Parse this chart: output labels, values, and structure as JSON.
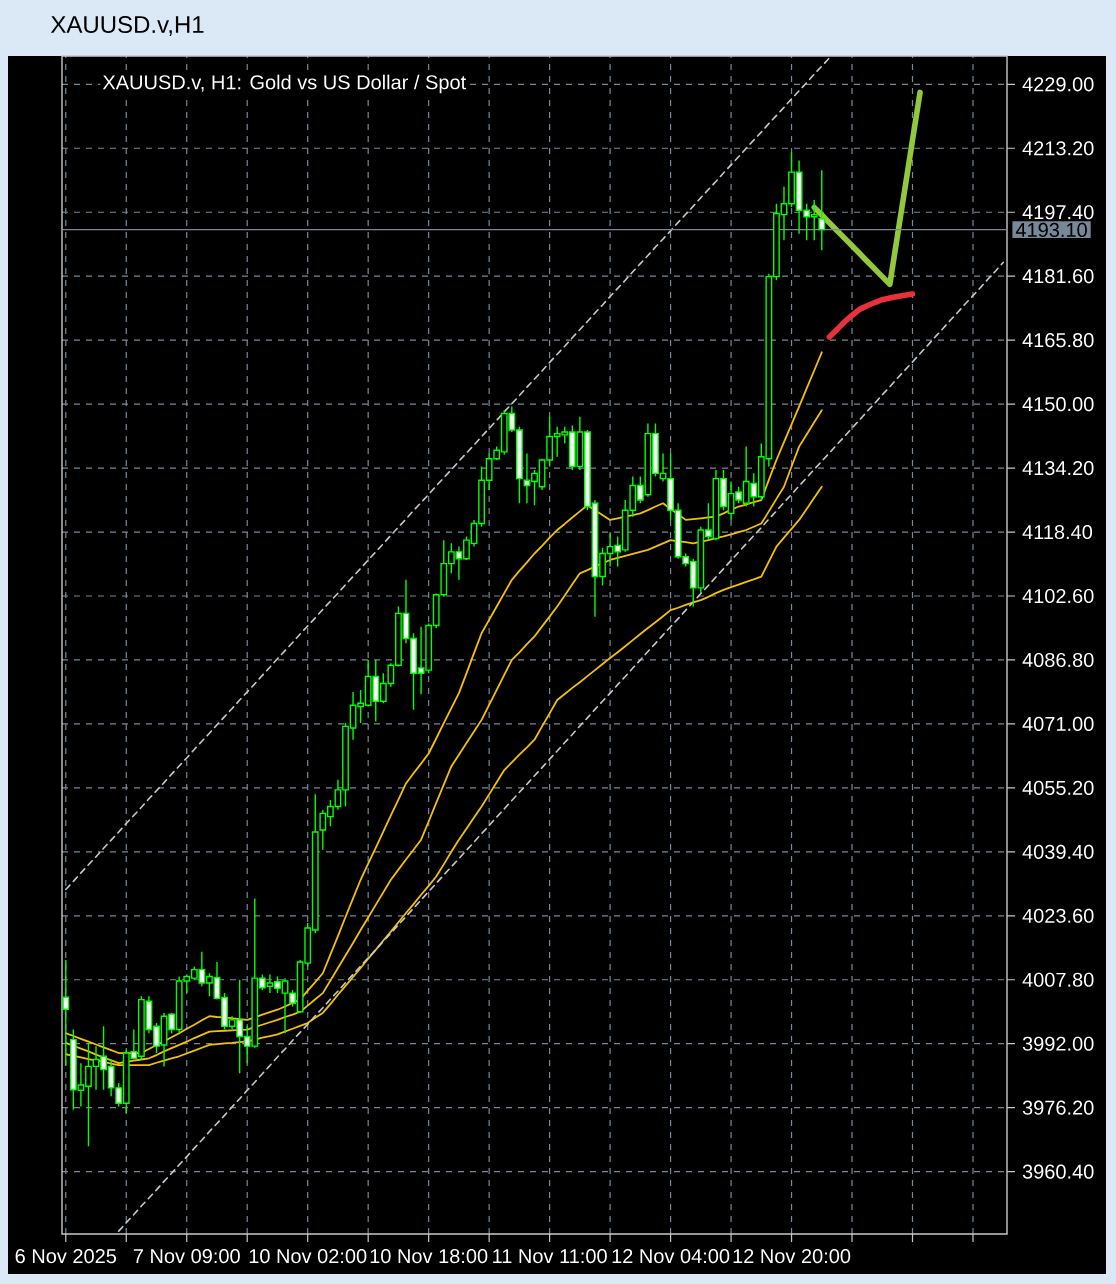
{
  "chart_data": {
    "type": "candlestick",
    "title": "XAUUSD.v,H1",
    "subtitle": "XAUUSD.v, H1: Gold vs US Dollar / Spot",
    "color": "#00ff00",
    "categories": [
      "6 Nov 2025",
      null,
      null,
      null,
      null,
      null,
      null,
      null,
      null,
      null,
      null,
      null,
      null,
      null,
      null,
      null,
      "7 Nov 09:00",
      null,
      null,
      null,
      null,
      null,
      null,
      null,
      null,
      null,
      null,
      null,
      null,
      null,
      null,
      null,
      "10 Nov 02:00",
      null,
      null,
      null,
      null,
      null,
      null,
      null,
      null,
      null,
      null,
      null,
      null,
      null,
      null,
      null,
      "10 Nov 18:00",
      null,
      null,
      null,
      null,
      null,
      null,
      null,
      null,
      null,
      null,
      null,
      null,
      null,
      null,
      null,
      "11 Nov 11:00",
      null,
      null,
      null,
      null,
      null,
      null,
      null,
      null,
      null,
      null,
      null,
      null,
      null,
      null,
      null,
      "12 Nov 04:00",
      null,
      null,
      null,
      null,
      null,
      null,
      null,
      null,
      null,
      null,
      null,
      null,
      null,
      null,
      null,
      "12 Nov 20:00",
      null,
      null,
      null,
      null,
      null,
      null,
      null,
      null,
      null,
      null,
      null,
      null,
      null,
      null,
      null,
      null,
      null,
      null,
      null,
      null,
      null,
      null,
      null,
      null,
      null,
      null,
      null,
      null
    ],
    "ohlc": [
      [
        4003.5,
        4012.7,
        3986.6,
        4000.5
      ],
      [
        3993.0,
        3995.5,
        3975.7,
        3980.6
      ],
      [
        3980.5,
        3987.2,
        3976.5,
        3981.8
      ],
      [
        3981.5,
        3992.2,
        3966.7,
        3986.4
      ],
      [
        3986.4,
        3991.4,
        3980.6,
        3988.1
      ],
      [
        3988.9,
        3996.3,
        3980.6,
        3985.6
      ],
      [
        3986.4,
        3988.1,
        3979.0,
        3981.1
      ],
      [
        3981.1,
        3982.3,
        3976.5,
        3977.3
      ],
      [
        3977.3,
        3990.5,
        3974.9,
        3989.7
      ],
      [
        3990.0,
        3995.5,
        3988.1,
        3988.4
      ],
      [
        3988.9,
        4003.7,
        3988.1,
        4002.9
      ],
      [
        4002.5,
        4003.7,
        3994.6,
        3995.5
      ],
      [
        3996.3,
        3997.1,
        3989.7,
        3991.4
      ],
      [
        3991.7,
        3999.6,
        3986.4,
        3998.8
      ],
      [
        3999.3,
        3999.6,
        3994.6,
        3995.5
      ],
      [
        3995.5,
        4008.6,
        3994.6,
        4007.5
      ],
      [
        4007.5,
        4009.1,
        4004.5,
        4008.6
      ],
      [
        4008.2,
        4011.1,
        4007.8,
        4010.3
      ],
      [
        4010.3,
        4014.7,
        4006.2,
        4007.0
      ],
      [
        4007.0,
        4009.4,
        4003.7,
        4008.6
      ],
      [
        4008.3,
        4012.2,
        4002.9,
        4003.2
      ],
      [
        4003.4,
        4004.5,
        3995.5,
        3996.3
      ],
      [
        3996.3,
        3998.8,
        3995.5,
        3997.9
      ],
      [
        3997.9,
        4007.8,
        3984.7,
        3993.8
      ],
      [
        3993.8,
        3996.3,
        3987.2,
        3991.4
      ],
      [
        3991.4,
        4027.9,
        3991.0,
        4008.2
      ],
      [
        4008.2,
        4009.1,
        4005.3,
        4005.8
      ],
      [
        4006.2,
        4009.1,
        4004.5,
        4007.0
      ],
      [
        4007.3,
        4008.6,
        4004.5,
        4005.7
      ],
      [
        4004.5,
        4008.2,
        3994.6,
        4007.5
      ],
      [
        4004.5,
        4005.3,
        4001.2,
        4002.0
      ],
      [
        3999.9,
        4012.7,
        3999.6,
        4012.2
      ],
      [
        4011.9,
        4021.8,
        4011.1,
        4020.6
      ],
      [
        4020.1,
        4053.6,
        4019.3,
        4044.3
      ],
      [
        4044.8,
        4049.8,
        4039.9,
        4048.9
      ],
      [
        4048.1,
        4052.2,
        4045.7,
        4050.6
      ],
      [
        4050.6,
        4057.2,
        4049.8,
        4054.7
      ],
      [
        4054.7,
        4071.2,
        4050.6,
        4070.4
      ],
      [
        4070.0,
        4078.9,
        4067.1,
        4075.6
      ],
      [
        4075.3,
        4079.4,
        4071.2,
        4076.1
      ],
      [
        4075.6,
        4086.8,
        4075.3,
        4082.7
      ],
      [
        4082.7,
        4086.8,
        4071.6,
        4076.6
      ],
      [
        4076.6,
        4083.5,
        4076.1,
        4081.0
      ],
      [
        4081.0,
        4086.0,
        4080.2,
        4085.5
      ],
      [
        4085.5,
        4100.0,
        4085.2,
        4098.3
      ],
      [
        4098.3,
        4106.6,
        4090.9,
        4092.1
      ],
      [
        4092.1,
        4093.4,
        4074.5,
        4083.5
      ],
      [
        4084.8,
        4095.0,
        4078.3,
        4083.5
      ],
      [
        4084.3,
        4095.8,
        4083.5,
        4095.3
      ],
      [
        4095.3,
        4103.2,
        4094.7,
        4102.9
      ],
      [
        4102.9,
        4116.4,
        4102.4,
        4110.6
      ],
      [
        4110.6,
        4115.6,
        4108.2,
        4113.5
      ],
      [
        4113.5,
        4114.8,
        4106.6,
        4111.8
      ],
      [
        4111.8,
        4117.3,
        4111.5,
        4116.4
      ],
      [
        4115.6,
        4121.4,
        4114.8,
        4120.5
      ],
      [
        4120.5,
        4134.6,
        4119.7,
        4131.2
      ],
      [
        4131.2,
        4137.8,
        4128.8,
        4136.5
      ],
      [
        4136.5,
        4139.5,
        4136.2,
        4138.6
      ],
      [
        4138.2,
        4148.5,
        4137.5,
        4147.7
      ],
      [
        4147.7,
        4149.4,
        4143.1,
        4143.6
      ],
      [
        4143.6,
        4144.4,
        4125.5,
        4131.6
      ],
      [
        4131.2,
        4137.8,
        4125.5,
        4129.9
      ],
      [
        4130.9,
        4133.7,
        4125.0,
        4132.9
      ],
      [
        4129.6,
        4136.5,
        4128.8,
        4136.2
      ],
      [
        4136.2,
        4146.9,
        4134.6,
        4142.0
      ],
      [
        4142.0,
        4144.4,
        4137.0,
        4142.7
      ],
      [
        4142.4,
        4144.4,
        4140.3,
        4143.1
      ],
      [
        4143.1,
        4144.7,
        4133.7,
        4134.6
      ],
      [
        4134.6,
        4146.9,
        4133.7,
        4143.1
      ],
      [
        4143.1,
        4143.6,
        4123.8,
        4124.7
      ],
      [
        4125.5,
        4126.3,
        4097.5,
        4107.4
      ],
      [
        4107.4,
        4114.5,
        4105.2,
        4113.1
      ],
      [
        4113.1,
        4118.1,
        4109.9,
        4114.8
      ],
      [
        4115.1,
        4117.3,
        4109.9,
        4113.5
      ],
      [
        4114.0,
        4126.3,
        4113.5,
        4123.8
      ],
      [
        4123.8,
        4132.1,
        4122.2,
        4129.9
      ],
      [
        4129.9,
        4132.1,
        4125.5,
        4126.3
      ],
      [
        4127.6,
        4145.2,
        4127.1,
        4142.7
      ],
      [
        4142.7,
        4145.2,
        4132.1,
        4132.9
      ],
      [
        4131.6,
        4137.8,
        4130.9,
        4132.9
      ],
      [
        4131.6,
        4137.8,
        4121.4,
        4123.8
      ],
      [
        4123.8,
        4125.5,
        4111.8,
        4112.3
      ],
      [
        4112.3,
        4113.1,
        4109.9,
        4110.6
      ],
      [
        4111.1,
        4111.8,
        4100.0,
        4104.6
      ],
      [
        4104.6,
        4119.7,
        4103.2,
        4118.9
      ],
      [
        4118.9,
        4125.5,
        4116.4,
        4117.3
      ],
      [
        4116.8,
        4133.7,
        4116.4,
        4131.6
      ],
      [
        4131.6,
        4133.7,
        4123.8,
        4124.7
      ],
      [
        4123.0,
        4130.9,
        4121.4,
        4127.9
      ],
      [
        4128.3,
        4129.6,
        4125.5,
        4126.3
      ],
      [
        4125.5,
        4139.5,
        4124.7,
        4130.9
      ],
      [
        4130.4,
        4132.9,
        4124.7,
        4127.1
      ],
      [
        4127.1,
        4140.3,
        4126.3,
        4137.0
      ],
      [
        4136.5,
        4182.2,
        4134.6,
        4181.5
      ],
      [
        4181.5,
        4199.5,
        4180.6,
        4197.1
      ],
      [
        4196.8,
        4203.7,
        4190.5,
        4199.5
      ],
      [
        4199.5,
        4212.2,
        4198.7,
        4207.3
      ],
      [
        4207.3,
        4210.2,
        4192.1,
        4197.9
      ],
      [
        4197.9,
        4199.5,
        4190.5,
        4196.3
      ],
      [
        4196.3,
        4200.4,
        4190.5,
        4196.8
      ],
      [
        4195.8,
        4207.8,
        4188.0,
        4193.1
      ],
      null,
      null,
      null,
      null,
      null,
      null,
      null,
      null,
      null,
      null,
      null,
      null,
      null,
      null,
      null,
      null,
      null,
      null,
      null,
      null,
      null,
      null,
      null,
      null
    ],
    "series": [
      {
        "type": "line",
        "color": "#f5c000",
        "line_style": "solid",
        "values": [
          3994.6,
          3993.9,
          3993.2,
          3992.5,
          3991.8,
          3991.1,
          3990.4,
          3989.7,
          3989.7,
          3989.7,
          3989.7,
          3990.7,
          3991.7,
          3992.6,
          3993.6,
          3994.6,
          3995.7,
          3996.7,
          3997.8,
          3998.8,
          3998.6,
          3998.5,
          3998.3,
          3998.1,
          3997.9,
          3998.5,
          3999.2,
          3999.8,
          4000.4,
          4001.2,
          4002.1,
          4002.9,
          4005.1,
          4007.2,
          4009.4,
          4014.0,
          4018.6,
          4023.3,
          4027.9,
          4032.5,
          4036.5,
          4040.4,
          4044.4,
          4048.4,
          4052.3,
          4056.3,
          4058.8,
          4061.2,
          4063.7,
          4067.4,
          4071.2,
          4074.9,
          4078.6,
          4083.5,
          4088.5,
          4093.4,
          4096.7,
          4100.0,
          4103.3,
          4106.6,
          4108.8,
          4110.9,
          4113.1,
          4115.0,
          4117.0,
          4118.9,
          4120.4,
          4122.0,
          4123.5,
          4125.0,
          4123.8,
          4122.6,
          4121.4,
          4121.8,
          4122.2,
          4122.6,
          4123.0,
          4123.8,
          4124.7,
          4125.5,
          4124.1,
          4122.8,
          4121.4,
          4121.6,
          4121.8,
          4122.0,
          4122.2,
          4123.0,
          4123.9,
          4124.7,
          4125.2,
          4125.8,
          4126.3,
          4131.3,
          4136.2,
          4140.6,
          4145.0,
          4149.4,
          4153.9,
          4158.3,
          4162.8,
          null,
          null,
          null,
          null,
          null,
          null,
          null,
          null,
          null,
          null,
          null,
          null,
          null,
          null,
          null,
          null,
          null,
          null,
          null,
          null,
          null,
          null,
          null,
          null
        ]
      },
      {
        "type": "line",
        "color": "#f5c000",
        "line_style": "solid",
        "values": [
          3992.2,
          3991.5,
          3990.8,
          3990.1,
          3989.3,
          3988.6,
          3987.9,
          3987.2,
          3987.5,
          3987.8,
          3988.1,
          3988.4,
          3989.2,
          3990.1,
          3990.9,
          3991.7,
          3992.5,
          3993.4,
          3994.2,
          3995.0,
          3995.1,
          3995.2,
          3995.3,
          3995.4,
          3995.5,
          3996.1,
          3996.7,
          3997.3,
          3997.9,
          3998.6,
          3999.2,
          3999.9,
          4001.4,
          4003.0,
          4004.5,
          4007.6,
          4010.7,
          4013.8,
          4016.9,
          4020.1,
          4023.2,
          4026.3,
          4029.4,
          4032.5,
          4035.0,
          4037.5,
          4039.9,
          4042.4,
          4046.9,
          4051.5,
          4056.0,
          4060.5,
          4063.4,
          4066.3,
          4069.1,
          4072.0,
          4075.7,
          4079.4,
          4083.1,
          4086.8,
          4088.7,
          4090.7,
          4092.6,
          4095.1,
          4097.5,
          4100.0,
          4102.7,
          4105.5,
          4108.2,
          4109.0,
          4109.9,
          4110.7,
          4111.5,
          4112.0,
          4112.5,
          4113.0,
          4113.5,
          4114.0,
          4114.8,
          4115.6,
          4116.4,
          4116.1,
          4115.9,
          4115.6,
          4116.0,
          4116.4,
          4116.9,
          4117.3,
          4117.8,
          4118.4,
          4118.9,
          4119.7,
          4120.5,
          4123.5,
          4126.6,
          4129.6,
          4134.6,
          4139.5,
          4142.5,
          4145.5,
          4148.5,
          null,
          null,
          null,
          null,
          null,
          null,
          null,
          null,
          null,
          null,
          null,
          null,
          null,
          null,
          null,
          null,
          null,
          null,
          null,
          null,
          null,
          null,
          null,
          null
        ]
      },
      {
        "type": "line",
        "color": "#f5c000",
        "line_style": "solid",
        "values": [
          3989.4,
          3989.0,
          3988.6,
          3988.2,
          3987.9,
          3987.5,
          3987.1,
          3986.7,
          3986.7,
          3986.7,
          3986.7,
          3986.7,
          3987.3,
          3987.8,
          3988.4,
          3988.9,
          3989.6,
          3990.3,
          3991.0,
          3991.7,
          3991.9,
          3992.1,
          3992.2,
          3992.4,
          3992.6,
          3993.0,
          3993.5,
          3993.9,
          3994.3,
          3995.0,
          3995.7,
          3996.4,
          3997.1,
          3998.4,
          3999.6,
          4001.8,
          4004.1,
          4006.3,
          4008.5,
          4010.7,
          4013.0,
          4015.2,
          4017.5,
          4019.7,
          4022.0,
          4024.3,
          4026.5,
          4028.8,
          4031.0,
          4033.3,
          4036.3,
          4039.4,
          4042.4,
          4045.1,
          4047.9,
          4050.6,
          4053.6,
          4056.6,
          4059.6,
          4061.5,
          4063.4,
          4065.2,
          4067.1,
          4070.4,
          4073.6,
          4076.9,
          4078.4,
          4079.9,
          4081.3,
          4082.8,
          4084.3,
          4085.8,
          4087.3,
          4088.7,
          4090.2,
          4091.7,
          4093.2,
          4094.7,
          4096.1,
          4097.6,
          4099.1,
          4099.7,
          4100.4,
          4101.0,
          4101.6,
          4102.4,
          4103.3,
          4104.1,
          4104.8,
          4105.4,
          4106.1,
          4106.7,
          4107.4,
          4111.1,
          4114.8,
          4117.0,
          4119.2,
          4121.4,
          4124.1,
          4126.9,
          4129.6,
          null,
          null,
          null,
          null,
          null,
          null,
          null,
          null,
          null,
          null,
          null,
          null,
          null,
          null,
          null,
          null,
          null,
          null,
          null,
          null,
          null,
          null,
          null,
          null
        ]
      },
      {
        "type": "line",
        "color": "#c8c8c8",
        "line_style": "dashed",
        "values": [
          4030.1,
          4032.1,
          4034.2,
          4036.2,
          4038.2,
          4040.3,
          4042.3,
          4044.3,
          4046.4,
          4048.4,
          4050.4,
          4052.5,
          4054.5,
          4056.5,
          4058.6,
          4060.6,
          4062.6,
          4064.7,
          4066.7,
          4068.7,
          4070.8,
          4072.8,
          4074.8,
          4076.9,
          4078.9,
          4080.9,
          4083.0,
          4085.0,
          4087.1,
          4089.1,
          4091.1,
          4093.2,
          4095.2,
          4097.2,
          4099.3,
          4101.3,
          4103.3,
          4105.4,
          4107.4,
          4109.4,
          4111.5,
          4113.5,
          4115.5,
          4117.6,
          4119.6,
          4121.6,
          4123.7,
          4125.7,
          4127.7,
          4129.8,
          4131.8,
          4133.8,
          4135.9,
          4137.9,
          4139.9,
          4142.0,
          4144.0,
          4146.0,
          4148.1,
          4150.1,
          4152.1,
          4154.2,
          4156.2,
          4158.2,
          4160.3,
          4162.3,
          4164.3,
          4166.4,
          4168.4,
          4170.4,
          4172.5,
          4174.5,
          4176.6,
          4178.6,
          4180.6,
          4182.7,
          4184.7,
          4186.7,
          4188.8,
          4190.8,
          4192.8,
          4194.9,
          4196.9,
          4198.9,
          4201.0,
          4203.0,
          4205.0,
          4207.1,
          4209.1,
          4211.1,
          4213.2,
          4215.2,
          4217.2,
          4219.3,
          4221.3,
          4223.3,
          4225.4,
          4227.4,
          4229.4,
          4231.5,
          4233.5,
          4235.5,
          null,
          null,
          null,
          null,
          null,
          null,
          null,
          null,
          null,
          null,
          null,
          null,
          null,
          null,
          null,
          null,
          null,
          null,
          null,
          null,
          null,
          null,
          null
        ]
      },
      {
        "type": "line",
        "color": "#c8c8c8",
        "line_style": "dashed",
        "values": [
          null,
          null,
          null,
          null,
          null,
          null,
          null,
          3945.7,
          3947.8,
          3949.8,
          3951.9,
          3953.9,
          3955.9,
          3958.0,
          3960.0,
          3962.1,
          3964.1,
          3966.2,
          3968.2,
          3970.3,
          3972.3,
          3974.3,
          3976.4,
          3978.4,
          3980.5,
          3982.5,
          3984.6,
          3986.6,
          3988.7,
          3990.7,
          3992.8,
          3994.8,
          3996.8,
          3998.9,
          4000.9,
          4003.0,
          4005.0,
          4007.1,
          4009.1,
          4011.2,
          4013.2,
          4015.2,
          4017.3,
          4019.3,
          4021.4,
          4023.4,
          4025.5,
          4027.5,
          4029.6,
          4031.6,
          4033.7,
          4035.7,
          4037.7,
          4039.8,
          4041.8,
          4043.9,
          4045.9,
          4048.0,
          4050.0,
          4052.1,
          4054.1,
          4056.1,
          4058.2,
          4060.2,
          4062.3,
          4064.3,
          4066.4,
          4068.4,
          4070.5,
          4072.5,
          4074.6,
          4076.6,
          4078.6,
          4080.7,
          4082.7,
          4084.8,
          4086.8,
          4088.9,
          4090.9,
          4093.0,
          4095.0,
          4097.0,
          4099.1,
          4101.1,
          4103.2,
          4105.2,
          4107.3,
          4109.3,
          4111.4,
          4113.4,
          4115.5,
          4117.5,
          4119.5,
          4121.6,
          4123.6,
          4125.7,
          4127.7,
          4129.8,
          4131.8,
          4133.9,
          4135.9,
          4137.9,
          4140.0,
          4142.0,
          4144.1,
          4146.1,
          4148.2,
          4150.2,
          4152.3,
          4154.3,
          4156.4,
          4158.4,
          4160.4,
          4162.5,
          4164.5,
          4166.6,
          4168.6,
          4170.7,
          4172.7,
          4174.8,
          4176.8,
          4178.8,
          4180.9,
          4182.9,
          4185.0
        ]
      },
      {
        "type": "line",
        "color": "#e8313a",
        "line_style": "solid",
        "values": [
          null,
          null,
          null,
          null,
          null,
          null,
          null,
          null,
          null,
          null,
          null,
          null,
          null,
          null,
          null,
          null,
          null,
          null,
          null,
          null,
          null,
          null,
          null,
          null,
          null,
          null,
          null,
          null,
          null,
          null,
          null,
          null,
          null,
          null,
          null,
          null,
          null,
          null,
          null,
          null,
          null,
          null,
          null,
          null,
          null,
          null,
          null,
          null,
          null,
          null,
          null,
          null,
          null,
          null,
          null,
          null,
          null,
          null,
          null,
          null,
          null,
          null,
          null,
          null,
          null,
          null,
          null,
          null,
          null,
          null,
          null,
          null,
          null,
          null,
          null,
          null,
          null,
          null,
          null,
          null,
          null,
          null,
          null,
          null,
          null,
          null,
          null,
          null,
          null,
          null,
          null,
          null,
          null,
          null,
          null,
          null,
          null,
          null,
          null,
          null,
          null,
          4166.6,
          4168.4,
          4170.3,
          4171.9,
          4173.4,
          4174.3,
          4175.1,
          4175.8,
          4176.2,
          4176.6,
          4176.9,
          4177.2,
          null,
          null,
          null,
          null,
          null,
          null,
          null,
          null,
          null,
          null,
          null,
          null
        ]
      },
      {
        "type": "line",
        "color": "#94c83c",
        "line_style": "solid",
        "values": [
          null,
          null,
          null,
          null,
          null,
          null,
          null,
          null,
          null,
          null,
          null,
          null,
          null,
          null,
          null,
          null,
          null,
          null,
          null,
          null,
          null,
          null,
          null,
          null,
          null,
          null,
          null,
          null,
          null,
          null,
          null,
          null,
          null,
          null,
          null,
          null,
          null,
          null,
          null,
          null,
          null,
          null,
          null,
          null,
          null,
          null,
          null,
          null,
          null,
          null,
          null,
          null,
          null,
          null,
          null,
          null,
          null,
          null,
          null,
          null,
          null,
          null,
          null,
          null,
          null,
          null,
          null,
          null,
          null,
          null,
          null,
          null,
          null,
          null,
          null,
          null,
          null,
          null,
          null,
          null,
          null,
          null,
          null,
          null,
          null,
          null,
          null,
          null,
          null,
          null,
          null,
          null,
          null,
          null,
          null,
          null,
          null,
          null,
          null,
          4198.6,
          4196.7,
          4194.8,
          4192.9,
          4191.0,
          4189.1,
          4187.2,
          4185.3,
          4183.4,
          4181.5,
          4179.6,
          4191.5,
          4203.3,
          4215.2,
          4227.0,
          null,
          null,
          null,
          null,
          null,
          null,
          null,
          null,
          null,
          null,
          null
        ]
      }
    ],
    "ylim": [
      3945,
      4236
    ],
    "yticks": [
      {
        "value": 3960.4,
        "label": "3960.40"
      },
      {
        "value": 3976.2,
        "label": "3976.20"
      },
      {
        "value": 3992,
        "label": "3992.00"
      },
      {
        "value": 4007.8,
        "label": "4007.80"
      },
      {
        "value": 4023.6,
        "label": "4023.60"
      },
      {
        "value": 4039.4,
        "label": "4039.40"
      },
      {
        "value": 4055.2,
        "label": "4055.20"
      },
      {
        "value": 4071,
        "label": "4071.00"
      },
      {
        "value": 4086.8,
        "label": "4086.80"
      },
      {
        "value": 4102.6,
        "label": "4102.60"
      },
      {
        "value": 4118.4,
        "label": "4118.40"
      },
      {
        "value": 4134.2,
        "label": "4134.20"
      },
      {
        "value": 4150,
        "label": "4150.00"
      },
      {
        "value": 4165.8,
        "label": "4165.80"
      },
      {
        "value": 4181.6,
        "label": "4181.60"
      },
      {
        "value": 4197.4,
        "label": "4197.40"
      },
      {
        "value": 4213.2,
        "label": "4213.20"
      },
      {
        "value": 4229,
        "label": "4229.00"
      }
    ],
    "grid": true,
    "ref_lines": [
      {
        "axis": "y",
        "value": 4193.1,
        "label": "4193.10",
        "color": "#778899"
      }
    ]
  }
}
